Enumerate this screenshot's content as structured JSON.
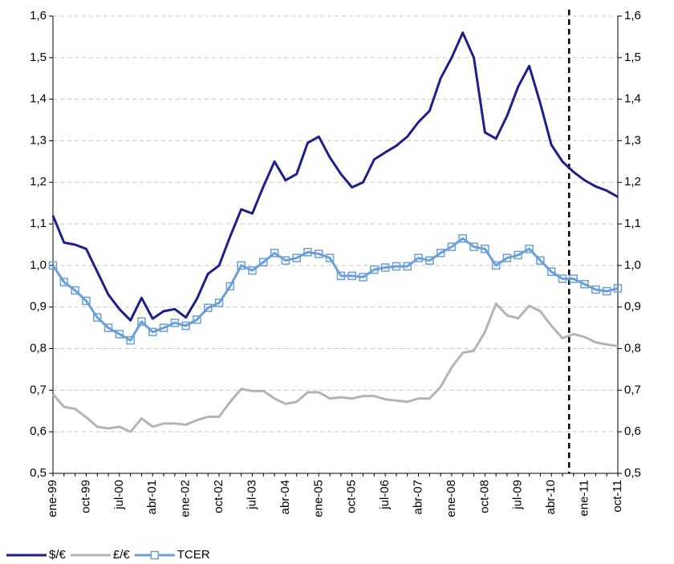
{
  "chart_data": {
    "type": "line",
    "categories": [
      "ene-99",
      null,
      null,
      "oct-99",
      null,
      null,
      "jul-00",
      null,
      null,
      "abr-01",
      null,
      null,
      "ene-02",
      null,
      null,
      "oct-02",
      null,
      null,
      "jul-03",
      null,
      null,
      "abr-04",
      null,
      null,
      "ene-05",
      null,
      null,
      "oct-05",
      null,
      null,
      "jul-06",
      null,
      null,
      "abr-07",
      null,
      null,
      "ene-08",
      null,
      null,
      "oct-08",
      null,
      null,
      "jul-09",
      null,
      null,
      "abr-10",
      null,
      null,
      "ene-11",
      null,
      null,
      "oct-11"
    ],
    "series": [
      {
        "name": "$/€",
        "color": "#1f1f8c",
        "marker": "none",
        "values": [
          1.12,
          1.055,
          1.05,
          1.04,
          0.985,
          0.93,
          0.895,
          0.868,
          0.922,
          0.872,
          0.89,
          0.895,
          0.875,
          0.92,
          0.98,
          1.0,
          1.07,
          1.135,
          1.125,
          1.19,
          1.25,
          1.205,
          1.22,
          1.295,
          1.31,
          1.26,
          1.22,
          1.188,
          1.2,
          1.255,
          1.272,
          1.288,
          1.31,
          1.345,
          1.372,
          1.45,
          1.5,
          1.56,
          1.5,
          1.32,
          1.305,
          1.36,
          1.43,
          1.48,
          1.39,
          1.29,
          1.25,
          1.225,
          1.205,
          1.19,
          1.18,
          1.165
        ]
      },
      {
        "name": "£/€",
        "color": "#b4b4b4",
        "marker": "none",
        "values": [
          0.69,
          0.66,
          0.655,
          0.635,
          0.612,
          0.608,
          0.612,
          0.6,
          0.632,
          0.612,
          0.62,
          0.62,
          0.617,
          0.628,
          0.636,
          0.636,
          0.672,
          0.703,
          0.698,
          0.698,
          0.68,
          0.667,
          0.672,
          0.695,
          0.695,
          0.68,
          0.683,
          0.68,
          0.686,
          0.686,
          0.678,
          0.675,
          0.672,
          0.68,
          0.68,
          0.708,
          0.755,
          0.79,
          0.795,
          0.84,
          0.908,
          0.88,
          0.873,
          0.903,
          0.89,
          0.855,
          0.825,
          0.835,
          0.828,
          0.815,
          0.81,
          0.806
        ]
      },
      {
        "name": "TCER",
        "color": "#6a9fd8",
        "marker": "square",
        "values": [
          1.0,
          0.96,
          0.94,
          0.915,
          0.875,
          0.85,
          0.835,
          0.82,
          0.865,
          0.84,
          0.85,
          0.862,
          0.855,
          0.87,
          0.898,
          0.91,
          0.95,
          1.0,
          0.988,
          1.008,
          1.03,
          1.012,
          1.018,
          1.032,
          1.028,
          1.018,
          0.975,
          0.975,
          0.972,
          0.99,
          0.995,
          0.998,
          0.998,
          1.018,
          1.012,
          1.03,
          1.045,
          1.065,
          1.045,
          1.04,
          1.0,
          1.018,
          1.025,
          1.04,
          1.012,
          0.985,
          0.968,
          0.968,
          0.955,
          0.942,
          0.938,
          0.945
        ]
      }
    ],
    "ylim": [
      0.5,
      1.6
    ],
    "yticks": [
      {
        "value": 0.5,
        "label": "0,5"
      },
      {
        "value": 0.6,
        "label": "0,6"
      },
      {
        "value": 0.7,
        "label": "0,7"
      },
      {
        "value": 0.8,
        "label": "0,8"
      },
      {
        "value": 0.9,
        "label": "0,9"
      },
      {
        "value": 1.0,
        "label": "1,0"
      },
      {
        "value": 1.1,
        "label": "1,1"
      },
      {
        "value": 1.2,
        "label": "1,2"
      },
      {
        "value": 1.3,
        "label": "1,3"
      },
      {
        "value": 1.4,
        "label": "1,4"
      },
      {
        "value": 1.5,
        "label": "1,5"
      },
      {
        "value": 1.6,
        "label": "1,6"
      }
    ],
    "y2lim": [
      0.5,
      1.6
    ],
    "y2ticks": [
      {
        "value": 0.5,
        "label": "0,5"
      },
      {
        "value": 0.6,
        "label": "0,6"
      },
      {
        "value": 0.7,
        "label": "0,7"
      },
      {
        "value": 0.8,
        "label": "0,8"
      },
      {
        "value": 0.9,
        "label": "0,9"
      },
      {
        "value": 1.0,
        "label": "1,0"
      },
      {
        "value": 1.1,
        "label": "1,1"
      },
      {
        "value": 1.2,
        "label": "1,2"
      },
      {
        "value": 1.3,
        "label": "1,3"
      },
      {
        "value": 1.4,
        "label": "1,4"
      },
      {
        "value": 1.5,
        "label": "1,5"
      },
      {
        "value": 1.6,
        "label": "1,6"
      }
    ],
    "grid": true,
    "legend": "bottom-left",
    "reference_line": {
      "x": 46.6,
      "style": "dashed",
      "color": "#000000"
    }
  }
}
